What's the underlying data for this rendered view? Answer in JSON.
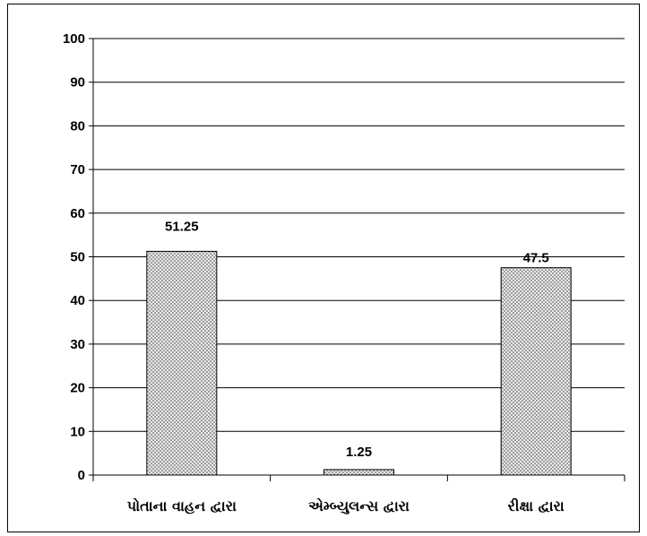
{
  "chart_data": {
    "type": "bar",
    "categories": [
      "પોતાના વાહન દ્વારા",
      "એમ્બ્યુલન્સ દ્વારા",
      "રીક્ષા દ્વારા"
    ],
    "values": [
      51.25,
      1.25,
      47.5
    ],
    "value_labels": [
      "51.25",
      "1.25",
      "47.5"
    ],
    "ylim": [
      0,
      100
    ],
    "yticks": [
      "0",
      "10",
      "20",
      "30",
      "40",
      "50",
      "60",
      "70",
      "80",
      "90",
      "100"
    ],
    "title": "",
    "xlabel": "",
    "ylabel": "",
    "grid": true,
    "legend": "none",
    "bar_pattern": "crosshatch",
    "colors": {
      "bar_fill": "#ffffff",
      "bar_hatch": "#8c8c8c",
      "bar_stroke": "#000000",
      "gridline": "#000000",
      "axis": "#000000",
      "text": "#000000"
    }
  }
}
